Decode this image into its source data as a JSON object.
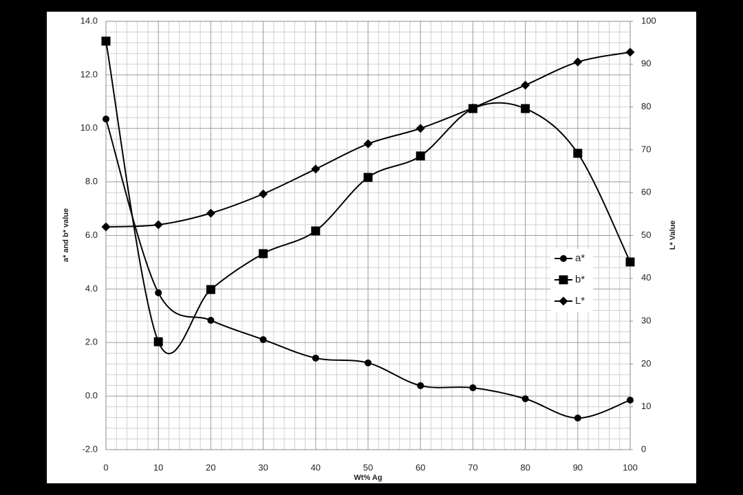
{
  "chart_data": {
    "type": "line",
    "x_label": "Wt% Ag",
    "y_label": "a* and b* value",
    "y2_label": "L* Value",
    "x": [
      0,
      10,
      20,
      30,
      40,
      50,
      60,
      70,
      80,
      90,
      100
    ],
    "xlim": [
      0,
      100
    ],
    "xticks": [
      0,
      10,
      20,
      30,
      40,
      50,
      60,
      70,
      80,
      90,
      100
    ],
    "ylim": [
      -2,
      14
    ],
    "yticks": [
      {
        "value": -2,
        "label": "-2.0"
      },
      {
        "value": 0,
        "label": "0.0"
      },
      {
        "value": 2,
        "label": "2.0"
      },
      {
        "value": 4,
        "label": "4.0"
      },
      {
        "value": 6,
        "label": "6.0"
      },
      {
        "value": 8,
        "label": "8.0"
      },
      {
        "value": 10,
        "label": "10.0"
      },
      {
        "value": 12,
        "label": "12.0"
      },
      {
        "value": 14,
        "label": "14.0"
      }
    ],
    "y2lim": [
      0,
      100
    ],
    "y2ticks": [
      0,
      10,
      20,
      30,
      40,
      50,
      60,
      70,
      80,
      90,
      100
    ],
    "grid": true,
    "smooth": true,
    "legend": "right",
    "series": [
      {
        "name": "a*",
        "color": "#000000",
        "marker": "circle",
        "values": [
          10.35,
          3.86,
          2.83,
          2.11,
          1.42,
          1.24,
          0.39,
          0.31,
          -0.1,
          -0.82,
          -0.15
        ]
      },
      {
        "name": "b*",
        "color": "#000000",
        "marker": "square",
        "values": [
          13.26,
          2.03,
          3.98,
          5.32,
          6.17,
          8.17,
          8.97,
          10.74,
          10.74,
          9.07,
          5.01
        ]
      },
      {
        "name": "L*",
        "color": "#000000",
        "marker": "diamond",
        "axis": "y2",
        "values": [
          52.0,
          52.5,
          55.2,
          59.7,
          65.5,
          71.4,
          75.0,
          79.8,
          85.1,
          90.5,
          92.8
        ]
      }
    ]
  }
}
